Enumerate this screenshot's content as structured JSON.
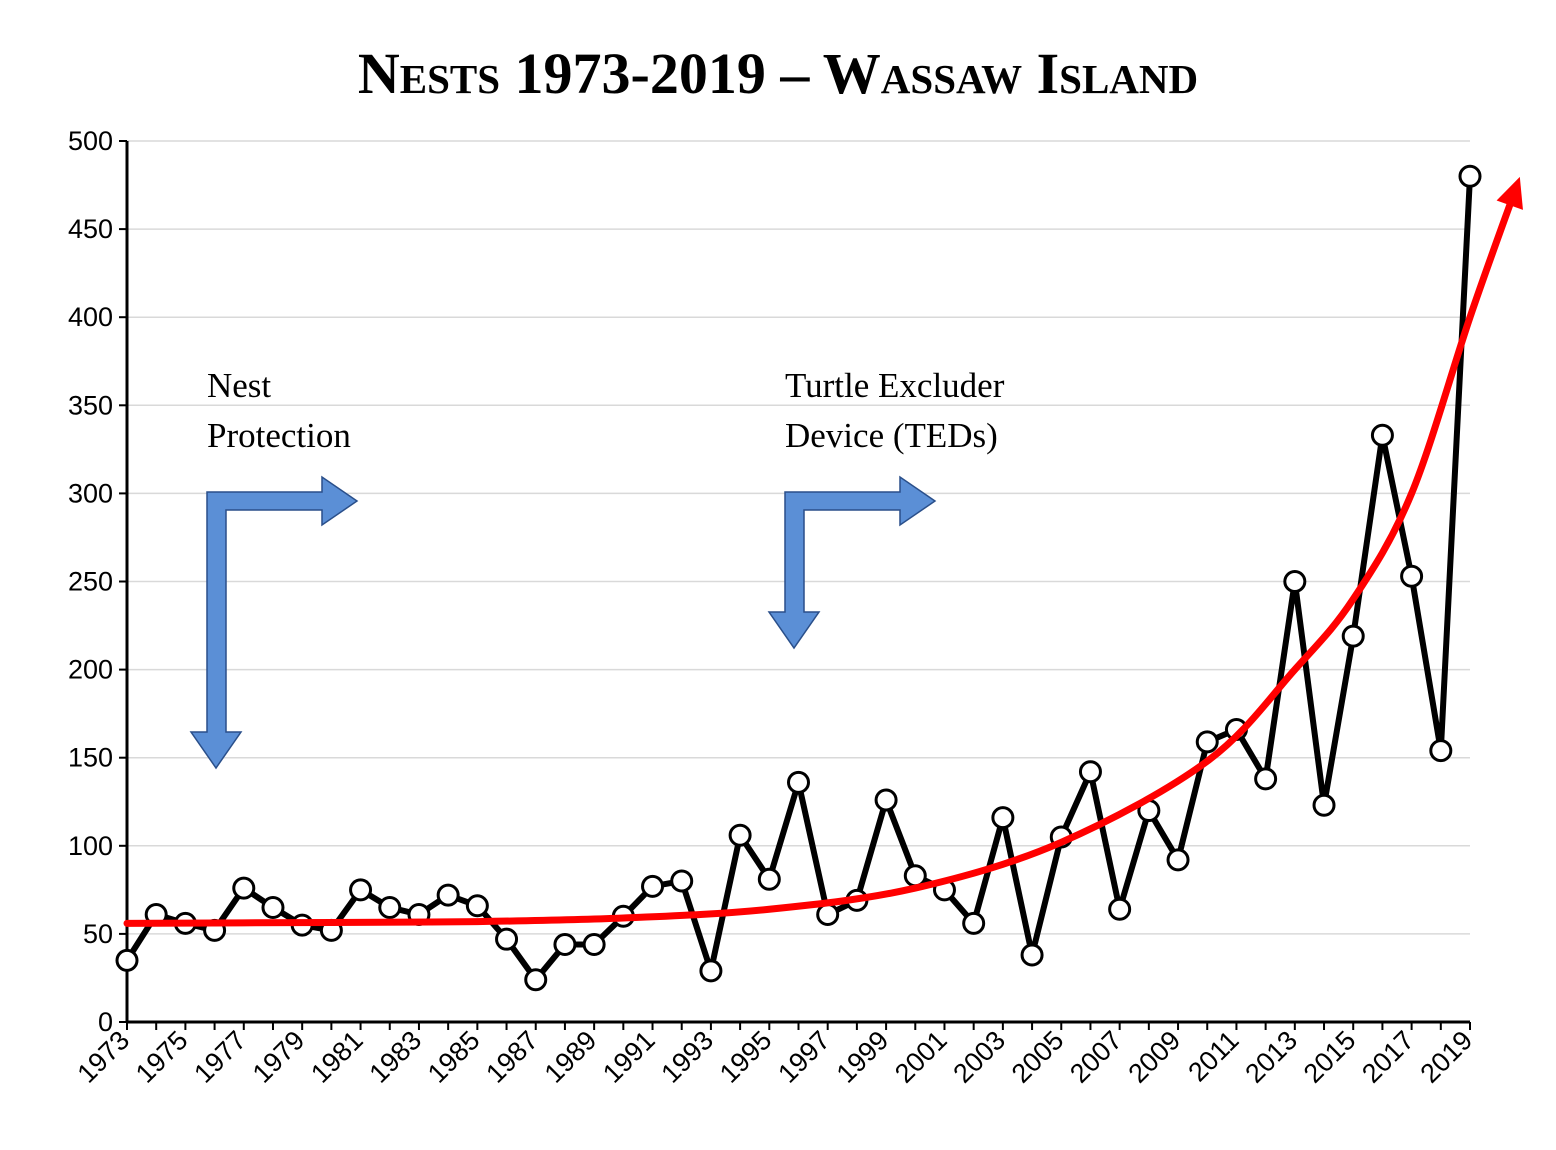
{
  "chart_data": {
    "type": "line",
    "title": "Nests 1973-2019 – Wassaw Island",
    "xlabel": "",
    "ylabel": "",
    "ylim": [
      0,
      500
    ],
    "yticks": [
      0,
      50,
      100,
      150,
      200,
      250,
      300,
      350,
      400,
      450,
      500
    ],
    "xlim": [
      1973,
      2019
    ],
    "xticks": [
      1973,
      1975,
      1977,
      1979,
      1981,
      1983,
      1985,
      1987,
      1989,
      1991,
      1993,
      1995,
      1997,
      1999,
      2001,
      2003,
      2005,
      2007,
      2009,
      2011,
      2013,
      2015,
      2017,
      2019
    ],
    "grid": true,
    "series": [
      {
        "x": [
          1973,
          1974,
          1975,
          1976,
          1977,
          1978,
          1979,
          1980,
          1981,
          1982,
          1983,
          1984,
          1985,
          1986,
          1987,
          1988,
          1989,
          1990,
          1991,
          1992,
          1993,
          1994,
          1995,
          1996,
          1997,
          1998,
          1999,
          2000,
          2001,
          2002,
          2003,
          2004,
          2005,
          2006,
          2007,
          2008,
          2009,
          2010,
          2011,
          2012,
          2013,
          2014,
          2015,
          2016,
          2017,
          2018,
          2019
        ],
        "values": [
          35,
          61,
          56,
          52,
          76,
          65,
          55,
          52,
          75,
          65,
          61,
          72,
          66,
          47,
          24,
          44,
          44,
          60,
          77,
          80,
          29,
          106,
          81,
          136,
          61,
          69,
          126,
          83,
          75,
          56,
          116,
          38,
          105,
          142,
          64,
          120,
          92,
          159,
          166,
          138,
          250,
          123,
          219,
          333,
          253,
          154,
          480
        ],
        "color": "#000000",
        "marker": "open-circle"
      }
    ],
    "trend_line": {
      "type": "exponential",
      "color": "#ff0000",
      "points": [
        [
          1973,
          56
        ],
        [
          1980,
          56.5
        ],
        [
          1985,
          57
        ],
        [
          1990,
          59
        ],
        [
          1995,
          64
        ],
        [
          2000,
          76
        ],
        [
          2005,
          102
        ],
        [
          2010,
          148
        ],
        [
          2013,
          200
        ],
        [
          2015,
          240
        ],
        [
          2017,
          300
        ],
        [
          2019,
          400
        ],
        [
          2020.5,
          470
        ]
      ]
    },
    "annotations": [
      {
        "id": "nest-protection",
        "lines": [
          "Nest",
          "Protection"
        ],
        "arrow_color": "#5b8fd6"
      },
      {
        "id": "teds",
        "lines": [
          "Turtle Excluder",
          "Device (TEDs)"
        ],
        "arrow_color": "#5b8fd6"
      }
    ]
  }
}
